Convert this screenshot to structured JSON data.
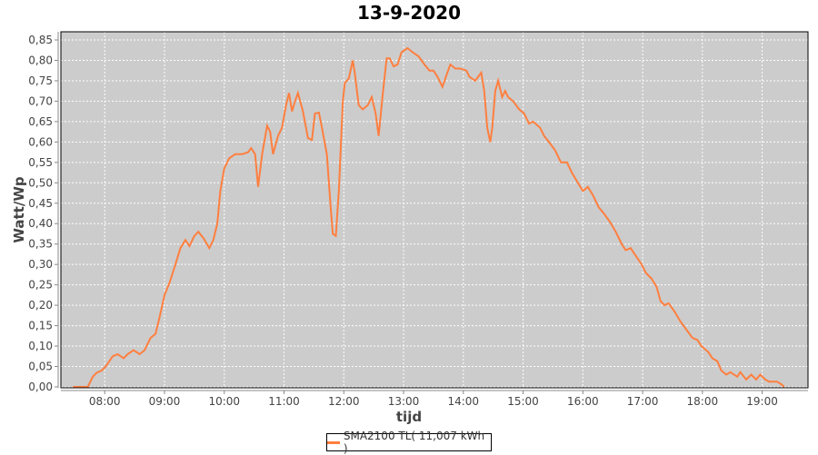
{
  "chart_data": {
    "type": "line",
    "title": "13-9-2020",
    "xlabel": "tijd",
    "ylabel": "Watt/Wp",
    "xlim": [
      "07:16",
      "19:46"
    ],
    "ylim": [
      0,
      0.87
    ],
    "grid": true,
    "legend_placement": "bottom",
    "x_ticks": [
      "08:00",
      "09:00",
      "10:00",
      "11:00",
      "12:00",
      "13:00",
      "14:00",
      "15:00",
      "16:00",
      "17:00",
      "18:00",
      "19:00"
    ],
    "y_ticks": [
      0,
      0.05,
      0.1,
      0.15,
      0.2,
      0.25,
      0.3,
      0.35,
      0.4,
      0.45,
      0.5,
      0.55,
      0.6,
      0.65,
      0.7,
      0.75,
      0.8,
      0.85
    ],
    "y_tick_labels": [
      "0,00",
      "0,05",
      "0,10",
      "0,15",
      "0,20",
      "0,25",
      "0,30",
      "0,35",
      "0,40",
      "0,45",
      "0,50",
      "0,55",
      "0,60",
      "0,65",
      "0,70",
      "0,75",
      "0,80",
      "0,85"
    ],
    "colors": {
      "plot_background": "#cccccc",
      "grid": "#ffffff",
      "series": "#ff7f3f"
    },
    "series": [
      {
        "name": "SMA2100 TL( 11,007 kWh )",
        "points": [
          [
            "07:28",
            0
          ],
          [
            "07:43",
            0
          ],
          [
            "07:48",
            0.025
          ],
          [
            "07:52",
            0.035
          ],
          [
            "07:57",
            0.04
          ],
          [
            "08:01",
            0.05
          ],
          [
            "08:08",
            0.075
          ],
          [
            "08:13",
            0.08
          ],
          [
            "08:19",
            0.07
          ],
          [
            "08:23",
            0.08
          ],
          [
            "08:29",
            0.09
          ],
          [
            "08:35",
            0.08
          ],
          [
            "08:40",
            0.09
          ],
          [
            "08:46",
            0.12
          ],
          [
            "08:51",
            0.13
          ],
          [
            "08:55",
            0.17
          ],
          [
            "09:00",
            0.225
          ],
          [
            "09:05",
            0.255
          ],
          [
            "09:11",
            0.3
          ],
          [
            "09:16",
            0.34
          ],
          [
            "09:21",
            0.36
          ],
          [
            "09:25",
            0.345
          ],
          [
            "09:30",
            0.37
          ],
          [
            "09:34",
            0.38
          ],
          [
            "09:39",
            0.365
          ],
          [
            "09:45",
            0.34
          ],
          [
            "09:49",
            0.36
          ],
          [
            "09:53",
            0.4
          ],
          [
            "09:56",
            0.48
          ],
          [
            "10:00",
            0.535
          ],
          [
            "10:05",
            0.56
          ],
          [
            "10:11",
            0.57
          ],
          [
            "10:18",
            0.57
          ],
          [
            "10:24",
            0.575
          ],
          [
            "10:27",
            0.585
          ],
          [
            "10:31",
            0.57
          ],
          [
            "10:34",
            0.49
          ],
          [
            "10:38",
            0.57
          ],
          [
            "10:43",
            0.64
          ],
          [
            "10:46",
            0.625
          ],
          [
            "10:49",
            0.57
          ],
          [
            "10:54",
            0.615
          ],
          [
            "10:58",
            0.635
          ],
          [
            "11:02",
            0.69
          ],
          [
            "11:05",
            0.72
          ],
          [
            "11:08",
            0.675
          ],
          [
            "11:11",
            0.7
          ],
          [
            "11:14",
            0.72
          ],
          [
            "11:19",
            0.675
          ],
          [
            "11:24",
            0.61
          ],
          [
            "11:28",
            0.605
          ],
          [
            "11:31",
            0.67
          ],
          [
            "11:35",
            0.672
          ],
          [
            "11:38",
            0.635
          ],
          [
            "11:43",
            0.57
          ],
          [
            "11:47",
            0.435
          ],
          [
            "11:49",
            0.375
          ],
          [
            "11:52",
            0.37
          ],
          [
            "11:55",
            0.48
          ],
          [
            "11:59",
            0.7
          ],
          [
            "12:01",
            0.745
          ],
          [
            "12:05",
            0.755
          ],
          [
            "12:09",
            0.8
          ],
          [
            "12:11",
            0.77
          ],
          [
            "12:15",
            0.69
          ],
          [
            "12:19",
            0.68
          ],
          [
            "12:24",
            0.69
          ],
          [
            "12:28",
            0.71
          ],
          [
            "12:32",
            0.67
          ],
          [
            "12:35",
            0.615
          ],
          [
            "12:39",
            0.715
          ],
          [
            "12:43",
            0.805
          ],
          [
            "12:46",
            0.805
          ],
          [
            "12:50",
            0.785
          ],
          [
            "12:54",
            0.79
          ],
          [
            "12:58",
            0.82
          ],
          [
            "13:04",
            0.83
          ],
          [
            "13:09",
            0.82
          ],
          [
            "13:15",
            0.81
          ],
          [
            "13:21",
            0.79
          ],
          [
            "13:26",
            0.775
          ],
          [
            "13:30",
            0.775
          ],
          [
            "13:34",
            0.76
          ],
          [
            "13:39",
            0.735
          ],
          [
            "13:44",
            0.77
          ],
          [
            "13:47",
            0.79
          ],
          [
            "13:52",
            0.78
          ],
          [
            "13:57",
            0.78
          ],
          [
            "14:03",
            0.775
          ],
          [
            "14:06",
            0.76
          ],
          [
            "14:12",
            0.75
          ],
          [
            "14:15",
            0.76
          ],
          [
            "14:18",
            0.77
          ],
          [
            "14:21",
            0.725
          ],
          [
            "14:24",
            0.635
          ],
          [
            "14:27",
            0.6
          ],
          [
            "14:29",
            0.635
          ],
          [
            "14:32",
            0.725
          ],
          [
            "14:35",
            0.75
          ],
          [
            "14:39",
            0.71
          ],
          [
            "14:42",
            0.725
          ],
          [
            "14:45",
            0.71
          ],
          [
            "14:50",
            0.7
          ],
          [
            "14:56",
            0.68
          ],
          [
            "15:01",
            0.67
          ],
          [
            "15:06",
            0.645
          ],
          [
            "15:10",
            0.65
          ],
          [
            "15:17",
            0.635
          ],
          [
            "15:21",
            0.615
          ],
          [
            "15:26",
            0.6
          ],
          [
            "15:32",
            0.58
          ],
          [
            "15:38",
            0.55
          ],
          [
            "15:44",
            0.55
          ],
          [
            "15:49",
            0.525
          ],
          [
            "15:55",
            0.5
          ],
          [
            "16:00",
            0.48
          ],
          [
            "16:05",
            0.49
          ],
          [
            "16:10",
            0.47
          ],
          [
            "16:16",
            0.44
          ],
          [
            "16:21",
            0.425
          ],
          [
            "16:27",
            0.405
          ],
          [
            "16:33",
            0.38
          ],
          [
            "16:39",
            0.35
          ],
          [
            "16:43",
            0.335
          ],
          [
            "16:48",
            0.34
          ],
          [
            "16:52",
            0.325
          ],
          [
            "16:59",
            0.3
          ],
          [
            "17:03",
            0.28
          ],
          [
            "17:09",
            0.265
          ],
          [
            "17:14",
            0.245
          ],
          [
            "17:18",
            0.21
          ],
          [
            "17:22",
            0.2
          ],
          [
            "17:26",
            0.205
          ],
          [
            "17:32",
            0.185
          ],
          [
            "17:38",
            0.16
          ],
          [
            "17:44",
            0.14
          ],
          [
            "17:50",
            0.12
          ],
          [
            "17:55",
            0.115
          ],
          [
            "17:59",
            0.1
          ],
          [
            "18:06",
            0.085
          ],
          [
            "18:10",
            0.07
          ],
          [
            "18:15",
            0.063
          ],
          [
            "18:19",
            0.04
          ],
          [
            "18:24",
            0.03
          ],
          [
            "18:28",
            0.036
          ],
          [
            "18:35",
            0.025
          ],
          [
            "18:38",
            0.036
          ],
          [
            "18:44",
            0.018
          ],
          [
            "18:49",
            0.03
          ],
          [
            "18:54",
            0.018
          ],
          [
            "18:58",
            0.03
          ],
          [
            "19:03",
            0.018
          ],
          [
            "19:07",
            0.013
          ],
          [
            "19:15",
            0.013
          ],
          [
            "19:20",
            0.005
          ],
          [
            "19:22",
            0
          ]
        ]
      }
    ]
  }
}
